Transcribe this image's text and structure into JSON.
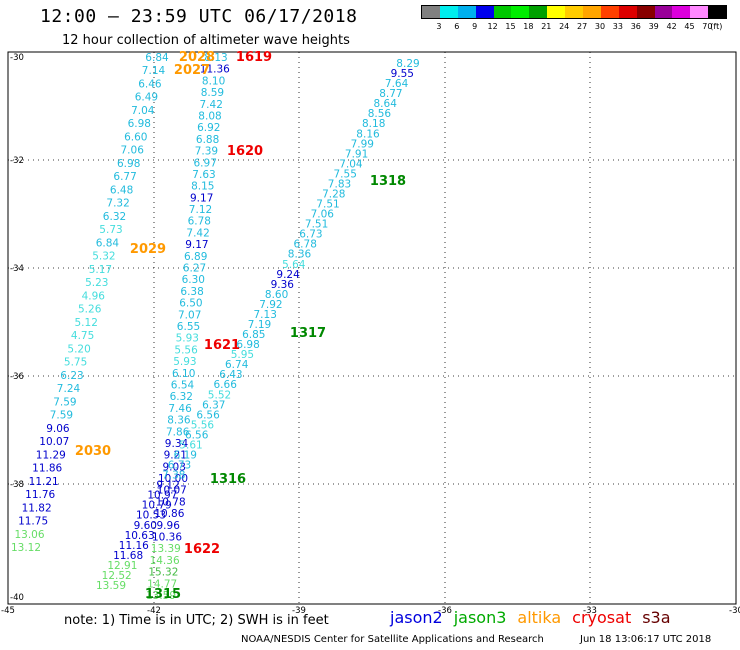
{
  "header": {
    "title": "12:00 – 23:59 UTC 06/17/2018",
    "subtitle": "12 hour collection of altimeter wave heights"
  },
  "color_scale": {
    "colors": [
      "#808080",
      "#00eeee",
      "#00b0ee",
      "#0000ee",
      "#00c800",
      "#00ee00",
      "#00a000",
      "#ffff00",
      "#ffcc00",
      "#ffa500",
      "#ff4000",
      "#dd0000",
      "#880000",
      "#990099",
      "#dd00dd",
      "#ff88ff",
      "#000000"
    ],
    "labels": [
      "3",
      "6",
      "9",
      "12",
      "15",
      "18",
      "21",
      "24",
      "27",
      "30",
      "33",
      "36",
      "39",
      "42",
      "45",
      "70",
      "(ft)"
    ]
  },
  "axes": {
    "lat_labels": [
      "-30",
      "-32",
      "-34",
      "-36",
      "-38",
      "-40"
    ],
    "lon_labels": [
      "-45",
      "-42",
      "-39",
      "-36",
      "-33",
      "-30"
    ]
  },
  "passes": [
    {
      "time": "2028",
      "color": "#ff9900"
    },
    {
      "time": "2027",
      "color": "#ff9900"
    },
    {
      "time": "1619",
      "color": "#ee0000"
    },
    {
      "time": "1620",
      "color": "#ee0000"
    },
    {
      "time": "1318",
      "color": "#008800"
    },
    {
      "time": "2029",
      "color": "#ff9900"
    },
    {
      "time": "1317",
      "color": "#008800"
    },
    {
      "time": "1621",
      "color": "#ee0000"
    },
    {
      "time": "2030",
      "color": "#ff9900"
    },
    {
      "time": "1316",
      "color": "#008800"
    },
    {
      "time": "1622",
      "color": "#ee0000"
    },
    {
      "time": "1315",
      "color": "#008800"
    }
  ],
  "tracks": {
    "t1": [
      {
        "v": "6.84",
        "c": "#22bbdd"
      },
      {
        "v": "7.14",
        "c": "#22bbdd"
      },
      {
        "v": "6.46",
        "c": "#22bbdd"
      },
      {
        "v": "6.49",
        "c": "#22bbdd"
      },
      {
        "v": "7.04",
        "c": "#22bbdd"
      },
      {
        "v": "6.98",
        "c": "#22bbdd"
      },
      {
        "v": "6.60",
        "c": "#22bbdd"
      },
      {
        "v": "7.06",
        "c": "#22bbdd"
      },
      {
        "v": "6.98",
        "c": "#22bbdd"
      },
      {
        "v": "6.77",
        "c": "#22bbdd"
      },
      {
        "v": "6.48",
        "c": "#22bbdd"
      },
      {
        "v": "7.32",
        "c": "#22bbdd"
      },
      {
        "v": "6.32",
        "c": "#22bbdd"
      },
      {
        "v": "5.73",
        "c": "#44dddd"
      },
      {
        "v": "6.84",
        "c": "#22bbdd"
      },
      {
        "v": "5.32",
        "c": "#44dddd"
      },
      {
        "v": "5.17",
        "c": "#44dddd"
      },
      {
        "v": "5.23",
        "c": "#44dddd"
      },
      {
        "v": "4.96",
        "c": "#44dddd"
      },
      {
        "v": "5.26",
        "c": "#44dddd"
      },
      {
        "v": "5.12",
        "c": "#44dddd"
      },
      {
        "v": "4.75",
        "c": "#44dddd"
      },
      {
        "v": "5.20",
        "c": "#44dddd"
      },
      {
        "v": "5.75",
        "c": "#44dddd"
      },
      {
        "v": "6.23",
        "c": "#22bbdd"
      },
      {
        "v": "7.24",
        "c": "#22bbdd"
      },
      {
        "v": "7.59",
        "c": "#22bbdd"
      },
      {
        "v": "7.59",
        "c": "#22bbdd"
      },
      {
        "v": "9.06",
        "c": "#0000cc"
      },
      {
        "v": "10.07",
        "c": "#0000cc"
      },
      {
        "v": "11.29",
        "c": "#0000cc"
      },
      {
        "v": "11.86",
        "c": "#0000cc"
      },
      {
        "v": "11.21",
        "c": "#0000cc"
      },
      {
        "v": "11.76",
        "c": "#0000cc"
      },
      {
        "v": "11.82",
        "c": "#0000cc"
      },
      {
        "v": "11.75",
        "c": "#0000cc"
      },
      {
        "v": "13.06",
        "c": "#66dd66"
      },
      {
        "v": "13.12",
        "c": "#66dd66"
      }
    ],
    "t2": [
      {
        "v": "8.13",
        "c": "#22bbdd"
      },
      {
        "v": "11.36",
        "c": "#0000cc"
      },
      {
        "v": "8.10",
        "c": "#22bbdd"
      },
      {
        "v": "8.59",
        "c": "#22bbdd"
      },
      {
        "v": "7.42",
        "c": "#22bbdd"
      },
      {
        "v": "8.08",
        "c": "#22bbdd"
      },
      {
        "v": "6.92",
        "c": "#22bbdd"
      },
      {
        "v": "6.88",
        "c": "#22bbdd"
      },
      {
        "v": "7.39",
        "c": "#22bbdd"
      },
      {
        "v": "6.97",
        "c": "#22bbdd"
      },
      {
        "v": "7.63",
        "c": "#22bbdd"
      },
      {
        "v": "8.15",
        "c": "#22bbdd"
      },
      {
        "v": "9.17",
        "c": "#0000cc"
      },
      {
        "v": "7.12",
        "c": "#22bbdd"
      },
      {
        "v": "6.78",
        "c": "#22bbdd"
      },
      {
        "v": "7.42",
        "c": "#22bbdd"
      },
      {
        "v": "9.17",
        "c": "#0000cc"
      },
      {
        "v": "6.89",
        "c": "#22bbdd"
      },
      {
        "v": "6.27",
        "c": "#22bbdd"
      },
      {
        "v": "6.30",
        "c": "#22bbdd"
      },
      {
        "v": "6.38",
        "c": "#22bbdd"
      },
      {
        "v": "6.50",
        "c": "#22bbdd"
      },
      {
        "v": "7.07",
        "c": "#22bbdd"
      },
      {
        "v": "6.55",
        "c": "#22bbdd"
      },
      {
        "v": "5.93",
        "c": "#44dddd"
      },
      {
        "v": "5.56",
        "c": "#44dddd"
      },
      {
        "v": "5.93",
        "c": "#44dddd"
      },
      {
        "v": "6.10",
        "c": "#22bbdd"
      },
      {
        "v": "6.54",
        "c": "#22bbdd"
      },
      {
        "v": "6.32",
        "c": "#22bbdd"
      },
      {
        "v": "7.46",
        "c": "#22bbdd"
      },
      {
        "v": "8.36",
        "c": "#22bbdd"
      },
      {
        "v": "7.86",
        "c": "#22bbdd"
      },
      {
        "v": "9.34",
        "c": "#0000cc"
      },
      {
        "v": "9.21",
        "c": "#0000cc"
      },
      {
        "v": "9.03",
        "c": "#0000cc"
      },
      {
        "v": "10.00",
        "c": "#0000cc"
      },
      {
        "v": "10.07",
        "c": "#0000cc"
      },
      {
        "v": "10.78",
        "c": "#0000cc"
      },
      {
        "v": "10.86",
        "c": "#0000cc"
      },
      {
        "v": "9.96",
        "c": "#0000cc"
      },
      {
        "v": "10.36",
        "c": "#0000cc"
      },
      {
        "v": "13.39",
        "c": "#66dd66"
      },
      {
        "v": "14.36",
        "c": "#66dd66"
      },
      {
        "v": "15.32",
        "c": "#44bb44"
      },
      {
        "v": "14.77",
        "c": "#66dd66"
      },
      {
        "v": "13.59",
        "c": "#66dd66"
      }
    ],
    "t3": [
      {
        "v": "8.29",
        "c": "#22bbdd"
      },
      {
        "v": "9.55",
        "c": "#0000cc"
      },
      {
        "v": "7.64",
        "c": "#22bbdd"
      },
      {
        "v": "8.77",
        "c": "#22bbdd"
      },
      {
        "v": "8.64",
        "c": "#22bbdd"
      },
      {
        "v": "8.56",
        "c": "#22bbdd"
      },
      {
        "v": "8.18",
        "c": "#22bbdd"
      },
      {
        "v": "8.16",
        "c": "#22bbdd"
      },
      {
        "v": "7.99",
        "c": "#22bbdd"
      },
      {
        "v": "7.91",
        "c": "#22bbdd"
      },
      {
        "v": "7.04",
        "c": "#22bbdd"
      },
      {
        "v": "7.55",
        "c": "#22bbdd"
      },
      {
        "v": "7.83",
        "c": "#22bbdd"
      },
      {
        "v": "7.28",
        "c": "#22bbdd"
      },
      {
        "v": "7.51",
        "c": "#22bbdd"
      },
      {
        "v": "7.06",
        "c": "#22bbdd"
      },
      {
        "v": "7.51",
        "c": "#22bbdd"
      },
      {
        "v": "6.73",
        "c": "#22bbdd"
      },
      {
        "v": "6.78",
        "c": "#22bbdd"
      },
      {
        "v": "8.36",
        "c": "#22bbdd"
      },
      {
        "v": "5.64",
        "c": "#44dddd"
      },
      {
        "v": "9.24",
        "c": "#0000cc"
      },
      {
        "v": "9.36",
        "c": "#0000cc"
      },
      {
        "v": "8.60",
        "c": "#22bbdd"
      },
      {
        "v": "7.92",
        "c": "#22bbdd"
      },
      {
        "v": "7.13",
        "c": "#22bbdd"
      },
      {
        "v": "7.19",
        "c": "#22bbdd"
      },
      {
        "v": "6.85",
        "c": "#22bbdd"
      },
      {
        "v": "6.98",
        "c": "#22bbdd"
      },
      {
        "v": "5.95",
        "c": "#44dddd"
      },
      {
        "v": "6.74",
        "c": "#22bbdd"
      },
      {
        "v": "6.43",
        "c": "#22bbdd"
      },
      {
        "v": "6.66",
        "c": "#22bbdd"
      },
      {
        "v": "5.52",
        "c": "#44dddd"
      },
      {
        "v": "6.37",
        "c": "#22bbdd"
      },
      {
        "v": "6.56",
        "c": "#22bbdd"
      },
      {
        "v": "5.56",
        "c": "#44dddd"
      },
      {
        "v": "6.56",
        "c": "#22bbdd"
      },
      {
        "v": "5.61",
        "c": "#44dddd"
      },
      {
        "v": "6.19",
        "c": "#22bbdd"
      },
      {
        "v": "6.73",
        "c": "#22bbdd"
      },
      {
        "v": "7.38",
        "c": "#22bbdd"
      },
      {
        "v": "9.12",
        "c": "#0000cc"
      },
      {
        "v": "10.97",
        "c": "#0000cc"
      },
      {
        "v": "10.79",
        "c": "#0000cc"
      },
      {
        "v": "10.53",
        "c": "#0000cc"
      },
      {
        "v": "9.60",
        "c": "#0000cc"
      },
      {
        "v": "10.63",
        "c": "#0000cc"
      },
      {
        "v": "11.16",
        "c": "#0000cc"
      },
      {
        "v": "11.68",
        "c": "#0000cc"
      },
      {
        "v": "12.91",
        "c": "#66dd66"
      },
      {
        "v": "12.52",
        "c": "#66dd66"
      },
      {
        "v": "13.59",
        "c": "#66dd66"
      }
    ]
  },
  "footer": {
    "note": "note: 1) Time is in UTC; 2) SWH is in feet",
    "satellites": [
      {
        "name": "jason2",
        "color": "#0000dd"
      },
      {
        "name": "jason3",
        "color": "#00aa00"
      },
      {
        "name": "altika",
        "color": "#ff9900"
      },
      {
        "name": "cryosat",
        "color": "#ee0000"
      },
      {
        "name": "s3a",
        "color": "#660000"
      }
    ],
    "agency": "NOAA/NESDIS Center for Satellite Applications and Research",
    "timestamp": "Jun 18 13:06:17 UTC 2018"
  }
}
